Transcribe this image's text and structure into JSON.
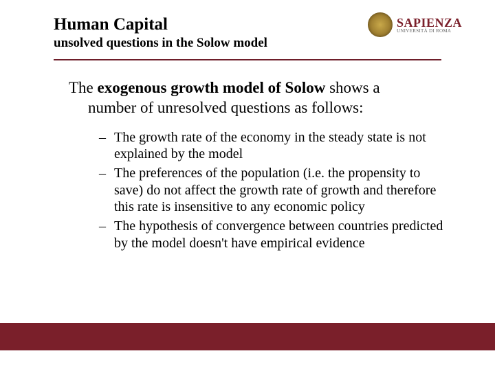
{
  "header": {
    "title": "Human Capital",
    "subtitle": "unsolved questions in the Solow model"
  },
  "logo": {
    "main": "SAPIENZA",
    "sub": "UNIVERSITÀ DI ROMA"
  },
  "intro": {
    "prefix": "The ",
    "bold": "exogenous growth model of Solow",
    "suffix1": " shows a",
    "line2": "number of unresolved questions as follows:"
  },
  "bullets": [
    "The growth rate of the economy in the steady state is not explained by the model",
    "The preferences of the population (i.e. the propensity to save) do not affect the growth rate of growth and therefore this rate is insensitive to any economic policy",
    "The hypothesis of convergence between countries predicted by the model doesn't have empirical evidence"
  ],
  "colors": {
    "accent": "#7a1f2a",
    "text": "#000000",
    "background": "#ffffff"
  }
}
